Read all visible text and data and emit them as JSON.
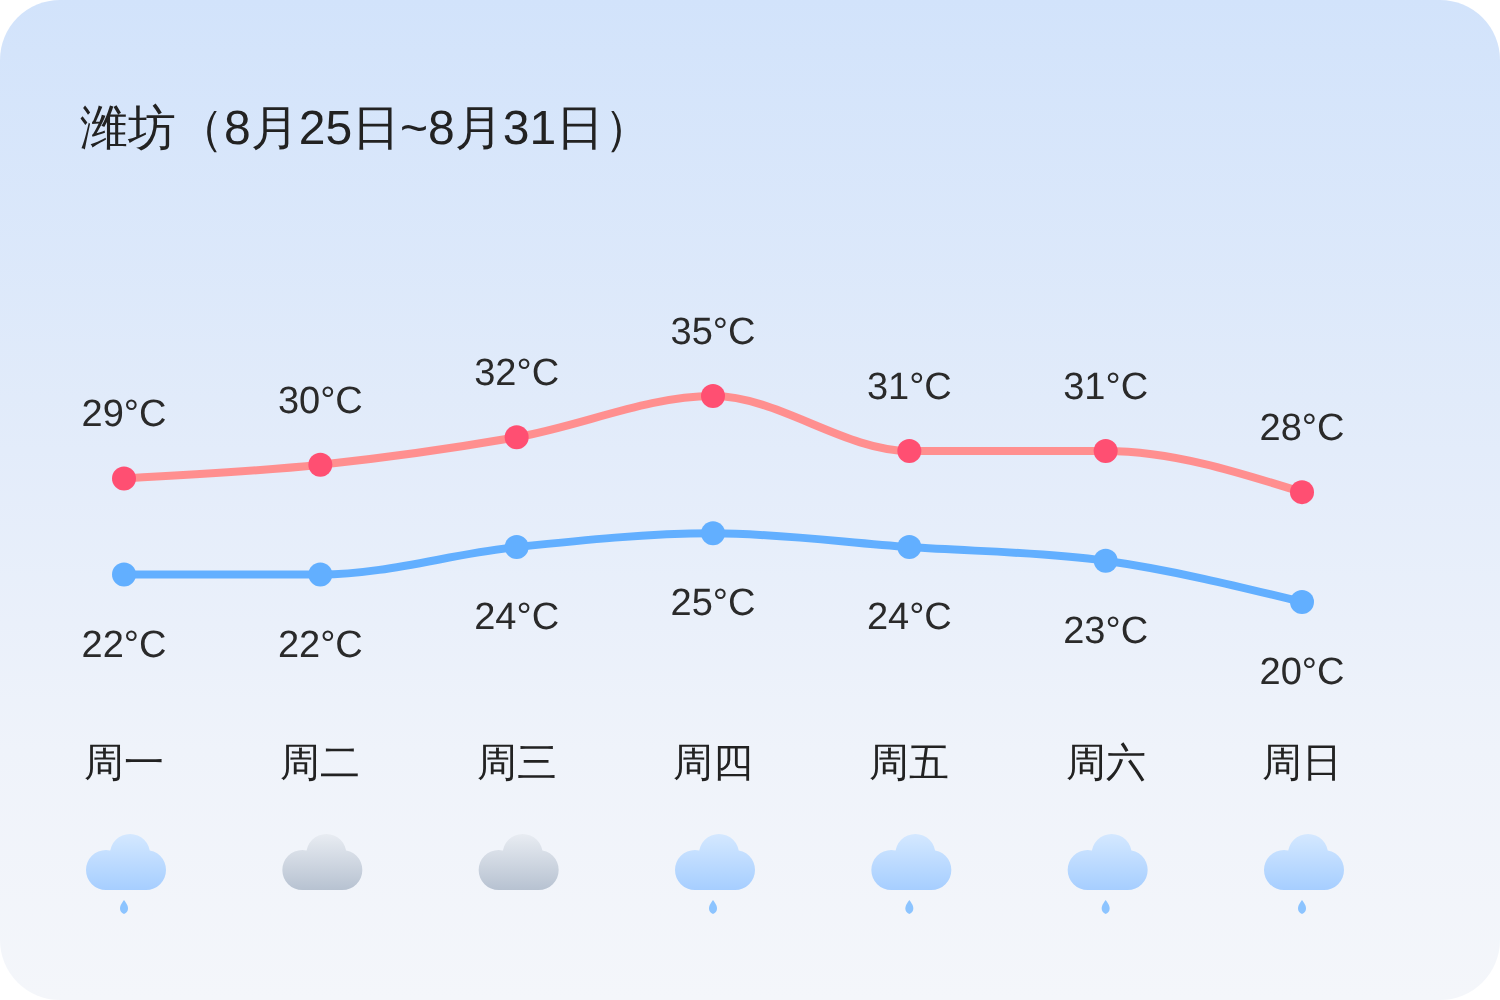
{
  "chart_data": {
    "type": "line",
    "title": "潍坊（8月25日~8月31日）",
    "categories": [
      "周一",
      "周二",
      "周三",
      "周四",
      "周五",
      "周六",
      "周日"
    ],
    "series": [
      {
        "color": "#ff8f8f",
        "colors": [
          "#ff4f72",
          "#ff4f72",
          "#ff4f72",
          "#ff4f72",
          "#ff4f72",
          "#ff4f72",
          "#ff4f72"
        ],
        "values": [
          29,
          30,
          32,
          35,
          31,
          31,
          28
        ],
        "value_labels": [
          "29°C",
          "30°C",
          "32°C",
          "35°C",
          "31°C",
          "31°C",
          "28°C"
        ]
      },
      {
        "color": "#62afff",
        "values": [
          22,
          22,
          24,
          25,
          24,
          23,
          20
        ],
        "value_labels": [
          "22°C",
          "22°C",
          "24°C",
          "25°C",
          "24°C",
          "23°C",
          "20°C"
        ]
      }
    ],
    "tick_labels": "x",
    "marker": "circle",
    "line_style": "solid"
  }
}
